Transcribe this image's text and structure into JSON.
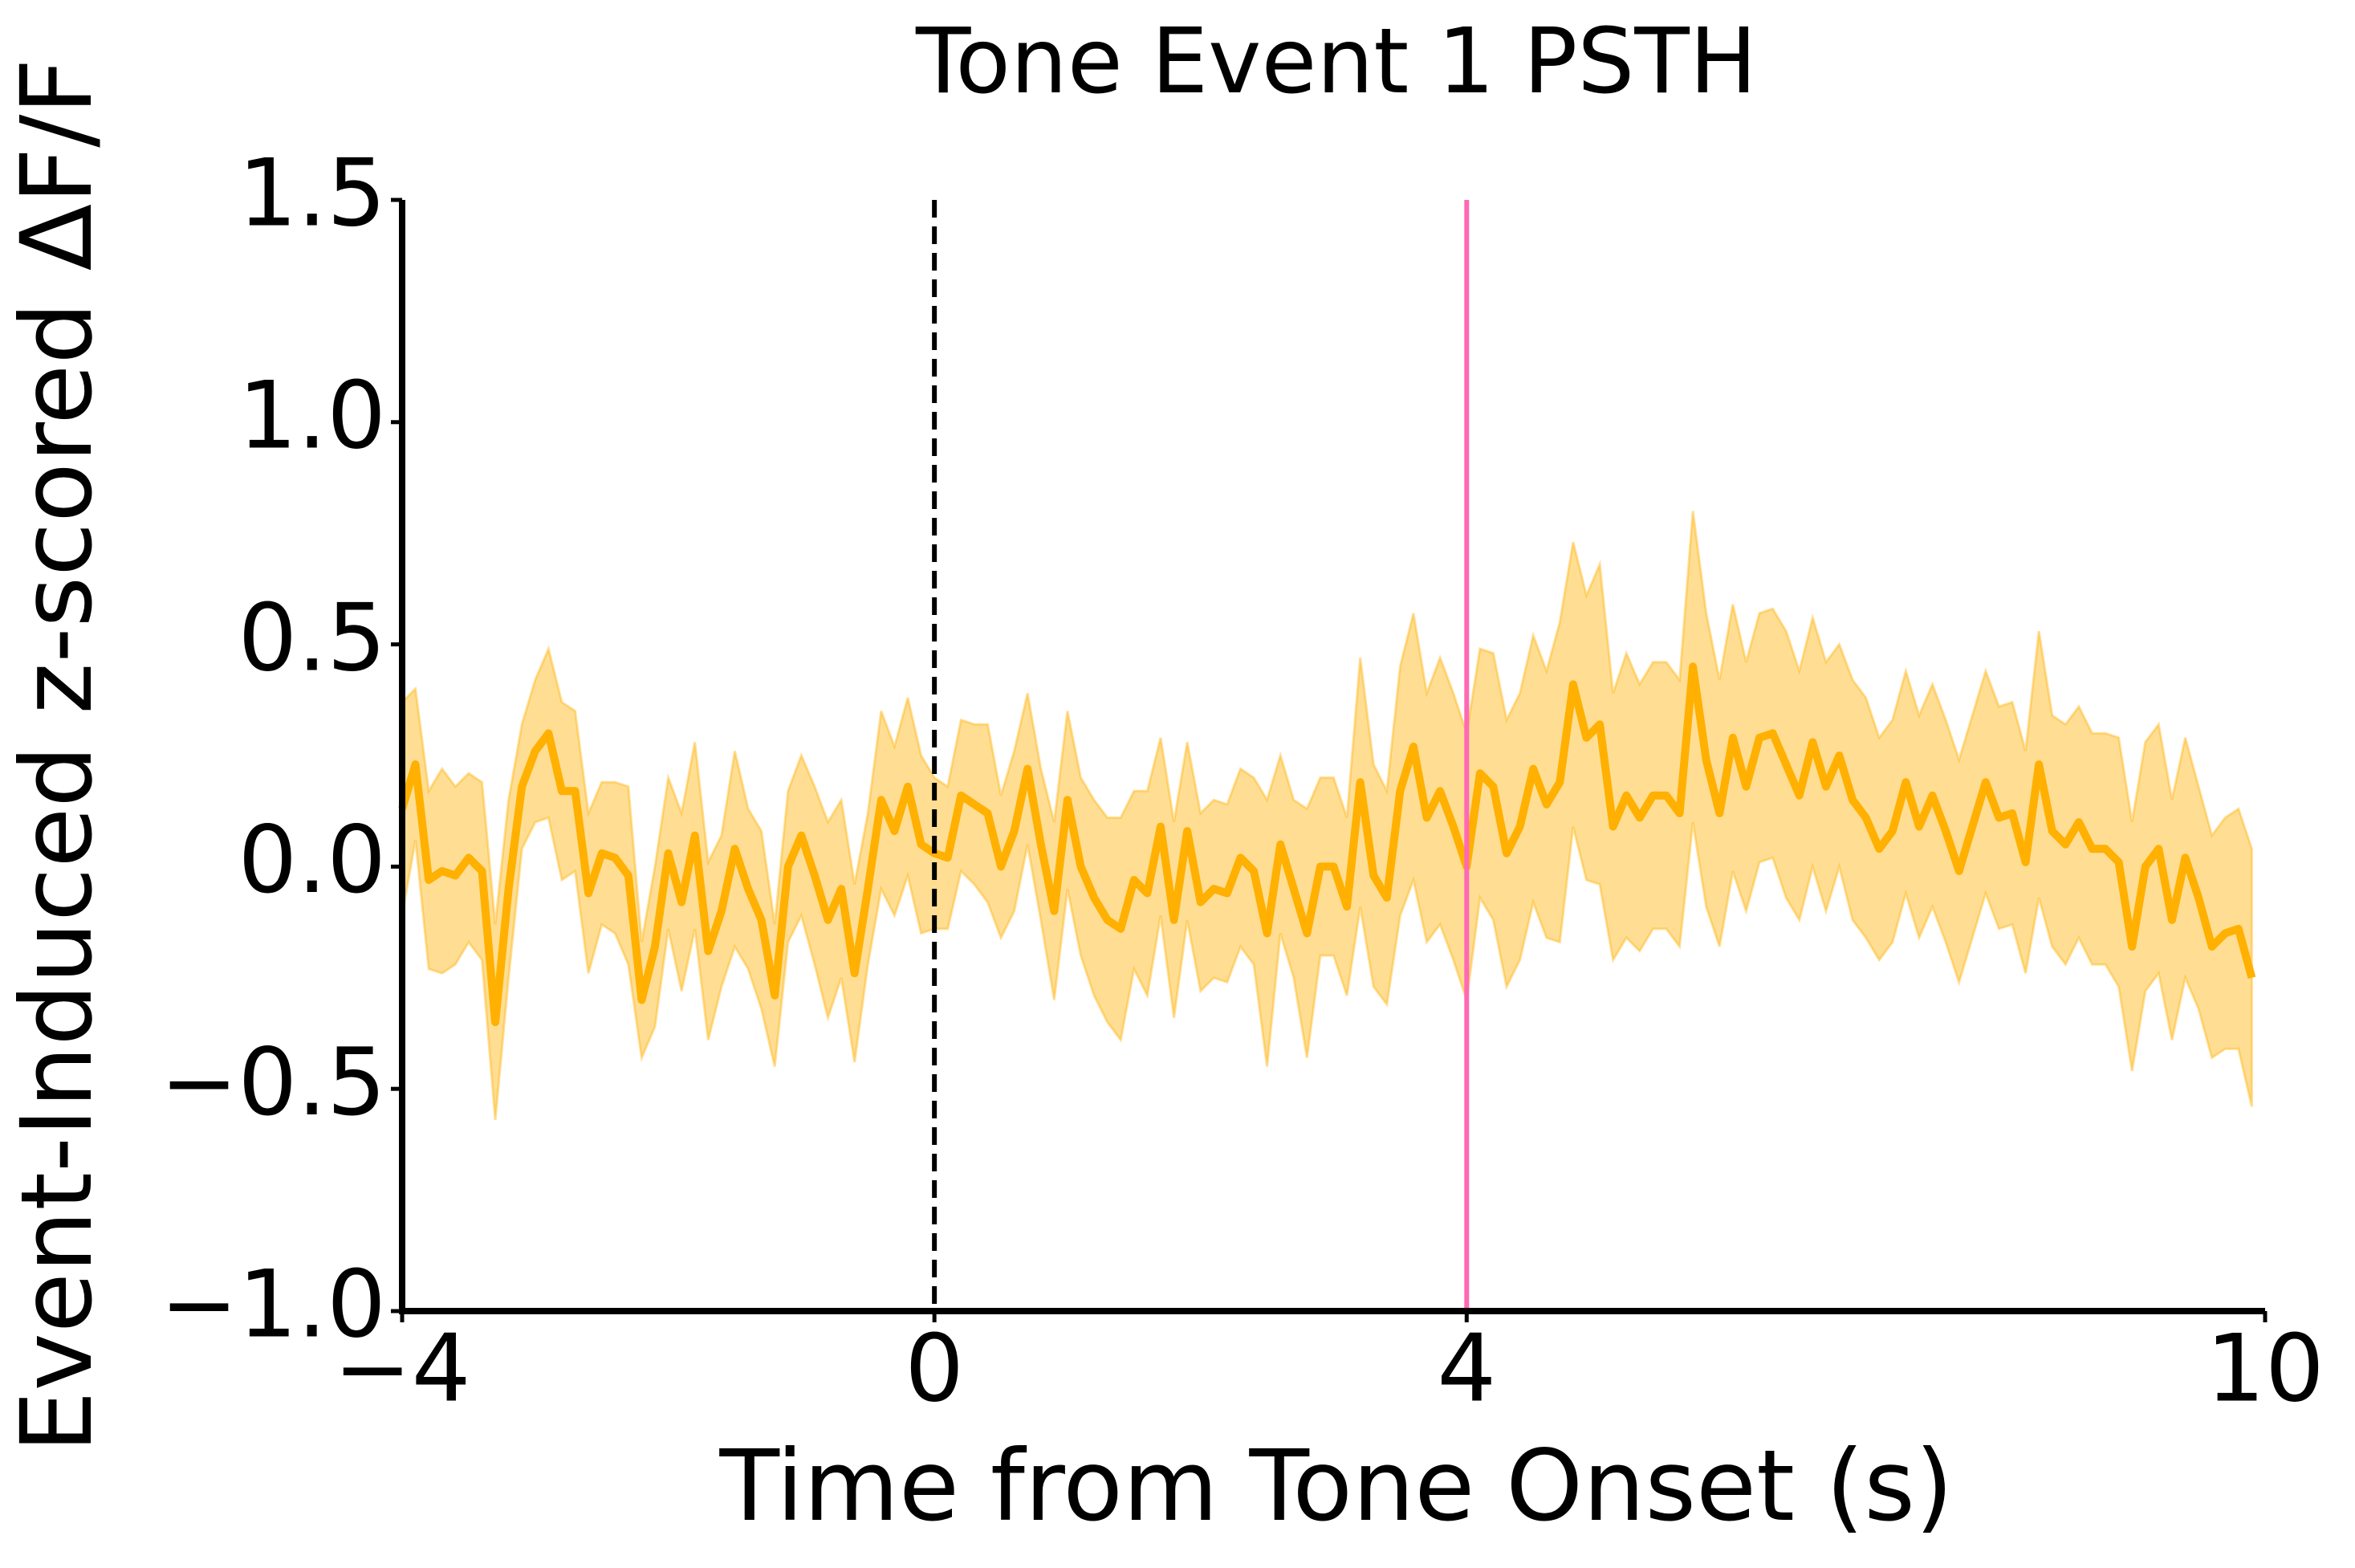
{
  "chart_data": {
    "type": "line",
    "title": "Tone Event 1 PSTH",
    "x_label": "Time from Tone Onset (s)",
    "y_label": "Event-Induced z-scored ΔF/F",
    "xlim": [
      -4,
      10
    ],
    "ylim": [
      -1.0,
      1.5
    ],
    "xticks": [
      {
        "value": -4,
        "label": "−4"
      },
      0,
      4,
      10
    ],
    "yticks": [
      {
        "value": -1.0,
        "label": "−1.0"
      },
      {
        "value": -0.5,
        "label": "−0.5"
      },
      {
        "value": 0.0,
        "label": "0.0"
      },
      0.5,
      {
        "value": 1.0,
        "label": "1.0"
      },
      1.5
    ],
    "vlines": [
      {
        "x": 0,
        "color": "#000000",
        "style": "dashed"
      },
      {
        "x": 4,
        "color": "#ff69b4",
        "style": "solid"
      }
    ],
    "x": [
      -4.0,
      -3.9,
      -3.8,
      -3.7,
      -3.6,
      -3.5,
      -3.4,
      -3.3,
      -3.2,
      -3.1,
      -3.0,
      -2.9,
      -2.8,
      -2.7,
      -2.6,
      -2.5,
      -2.4,
      -2.3,
      -2.2,
      -2.1,
      -2.0,
      -1.9,
      -1.8,
      -1.7,
      -1.6,
      -1.5,
      -1.4,
      -1.3,
      -1.2,
      -1.1,
      -1.0,
      -0.9,
      -0.8,
      -0.7,
      -0.6,
      -0.5,
      -0.4,
      -0.3,
      -0.2,
      -0.1,
      0.0,
      0.1,
      0.2,
      0.3,
      0.4,
      0.5,
      0.6,
      0.7,
      0.8,
      0.9,
      1.0,
      1.1,
      1.2,
      1.3,
      1.4,
      1.5,
      1.6,
      1.7,
      1.8,
      1.9,
      2.0,
      2.1,
      2.2,
      2.3,
      2.4,
      2.5,
      2.6,
      2.7,
      2.8,
      2.9,
      3.0,
      3.1,
      3.2,
      3.3,
      3.4,
      3.5,
      3.6,
      3.7,
      3.8,
      3.9,
      4.0,
      4.1,
      4.2,
      4.3,
      4.4,
      4.5,
      4.6,
      4.7,
      4.8,
      4.9,
      5.0,
      5.1,
      5.2,
      5.3,
      5.4,
      5.5,
      5.6,
      5.7,
      5.8,
      5.9,
      6.0,
      6.1,
      6.2,
      6.3,
      6.4,
      6.5,
      6.6,
      6.7,
      6.8,
      6.9,
      7.0,
      7.1,
      7.2,
      7.3,
      7.4,
      7.5,
      7.6,
      7.7,
      7.8,
      7.9,
      8.0,
      8.1,
      8.2,
      8.3,
      8.4,
      8.5,
      8.6,
      8.7,
      8.8,
      8.9,
      9.0,
      9.1,
      9.2,
      9.3,
      9.4,
      9.5,
      9.6,
      9.7,
      9.8,
      9.9
    ],
    "series": [
      {
        "color": "#ffb000",
        "band_color": "#ffb000",
        "values": [
          0.13,
          0.23,
          -0.03,
          -0.01,
          -0.02,
          0.02,
          -0.01,
          -0.35,
          -0.05,
          0.18,
          0.26,
          0.3,
          0.17,
          0.17,
          -0.06,
          0.03,
          0.02,
          -0.02,
          -0.3,
          -0.18,
          0.03,
          -0.08,
          0.07,
          -0.19,
          -0.1,
          0.04,
          -0.05,
          -0.12,
          -0.29,
          0.0,
          0.07,
          -0.02,
          -0.12,
          -0.05,
          -0.24,
          -0.05,
          0.15,
          0.08,
          0.18,
          0.05,
          0.03,
          0.02,
          0.16,
          0.14,
          0.12,
          0.0,
          0.08,
          0.22,
          0.05,
          -0.1,
          0.15,
          0.0,
          -0.07,
          -0.12,
          -0.14,
          -0.03,
          -0.06,
          0.09,
          -0.12,
          0.08,
          -0.08,
          -0.05,
          -0.06,
          0.02,
          -0.01,
          -0.15,
          0.05,
          -0.05,
          -0.15,
          0.0,
          0.0,
          -0.09,
          0.19,
          -0.02,
          -0.07,
          0.17,
          0.27,
          0.11,
          0.17,
          0.09,
          0.0,
          0.21,
          0.18,
          0.03,
          0.09,
          0.22,
          0.14,
          0.19,
          0.41,
          0.29,
          0.32,
          0.09,
          0.16,
          0.11,
          0.16,
          0.16,
          0.12,
          0.45,
          0.24,
          0.12,
          0.29,
          0.18,
          0.29,
          0.3,
          0.23,
          0.16,
          0.28,
          0.18,
          0.25,
          0.15,
          0.11,
          0.04,
          0.08,
          0.19,
          0.09,
          0.16,
          0.08,
          -0.01,
          0.09,
          0.19,
          0.11,
          0.12,
          0.01,
          0.23,
          0.08,
          0.05,
          0.1,
          0.04,
          0.04,
          0.01,
          -0.18,
          0.0,
          0.04,
          -0.12,
          0.02,
          -0.07,
          -0.18,
          -0.15,
          -0.14,
          -0.25
        ],
        "error": [
          0.24,
          0.17,
          0.2,
          0.23,
          0.2,
          0.19,
          0.2,
          0.22,
          0.2,
          0.14,
          0.16,
          0.19,
          0.2,
          0.18,
          0.18,
          0.16,
          0.17,
          0.2,
          0.13,
          0.18,
          0.17,
          0.2,
          0.21,
          0.2,
          0.17,
          0.22,
          0.18,
          0.2,
          0.16,
          0.17,
          0.18,
          0.2,
          0.22,
          0.2,
          0.2,
          0.17,
          0.2,
          0.19,
          0.2,
          0.2,
          0.17,
          0.16,
          0.17,
          0.18,
          0.2,
          0.16,
          0.18,
          0.17,
          0.17,
          0.2,
          0.2,
          0.2,
          0.22,
          0.23,
          0.25,
          0.2,
          0.23,
          0.2,
          0.22,
          0.2,
          0.2,
          0.2,
          0.2,
          0.2,
          0.21,
          0.3,
          0.2,
          0.2,
          0.28,
          0.2,
          0.2,
          0.2,
          0.28,
          0.25,
          0.24,
          0.28,
          0.3,
          0.28,
          0.3,
          0.3,
          0.3,
          0.28,
          0.3,
          0.3,
          0.3,
          0.3,
          0.3,
          0.36,
          0.32,
          0.32,
          0.36,
          0.3,
          0.32,
          0.3,
          0.3,
          0.3,
          0.3,
          0.35,
          0.33,
          0.3,
          0.3,
          0.28,
          0.28,
          0.28,
          0.3,
          0.28,
          0.28,
          0.28,
          0.25,
          0.27,
          0.27,
          0.25,
          0.25,
          0.25,
          0.25,
          0.25,
          0.25,
          0.25,
          0.25,
          0.25,
          0.25,
          0.25,
          0.25,
          0.3,
          0.26,
          0.27,
          0.26,
          0.26,
          0.26,
          0.28,
          0.28,
          0.28,
          0.28,
          0.27,
          0.27,
          0.25,
          0.25,
          0.26,
          0.27,
          0.29
        ]
      }
    ]
  }
}
